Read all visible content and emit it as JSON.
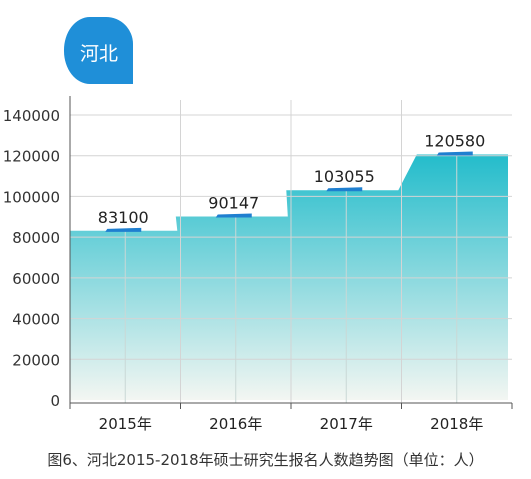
{
  "badge": {
    "text": "河北",
    "color": "#1f8fd8"
  },
  "caption": "图6、河北2015-2018年硕士研究生报名人数趋势图（单位：人）",
  "chart_data": {
    "type": "area",
    "categories": [
      "2015年",
      "2016年",
      "2017年",
      "2018年"
    ],
    "values": [
      83100,
      90147,
      103055,
      120580
    ],
    "data_labels": [
      "83100",
      "90147",
      "103055",
      "120580"
    ],
    "y_ticks": [
      0,
      20000,
      40000,
      60000,
      80000,
      100000,
      120000,
      140000
    ],
    "y_tick_labels": [
      "0",
      "20000",
      "40000",
      "60000",
      "80000",
      "100000",
      "120000",
      "140000"
    ],
    "ylim": [
      0,
      140000
    ],
    "grid": true,
    "title": "",
    "xlabel": "",
    "ylabel": "",
    "colors": {
      "area_top": "#23bccb",
      "area_bottom": "#f3f6f2",
      "marker": "#1f7fd0",
      "grid": "#d4d4d4"
    }
  }
}
